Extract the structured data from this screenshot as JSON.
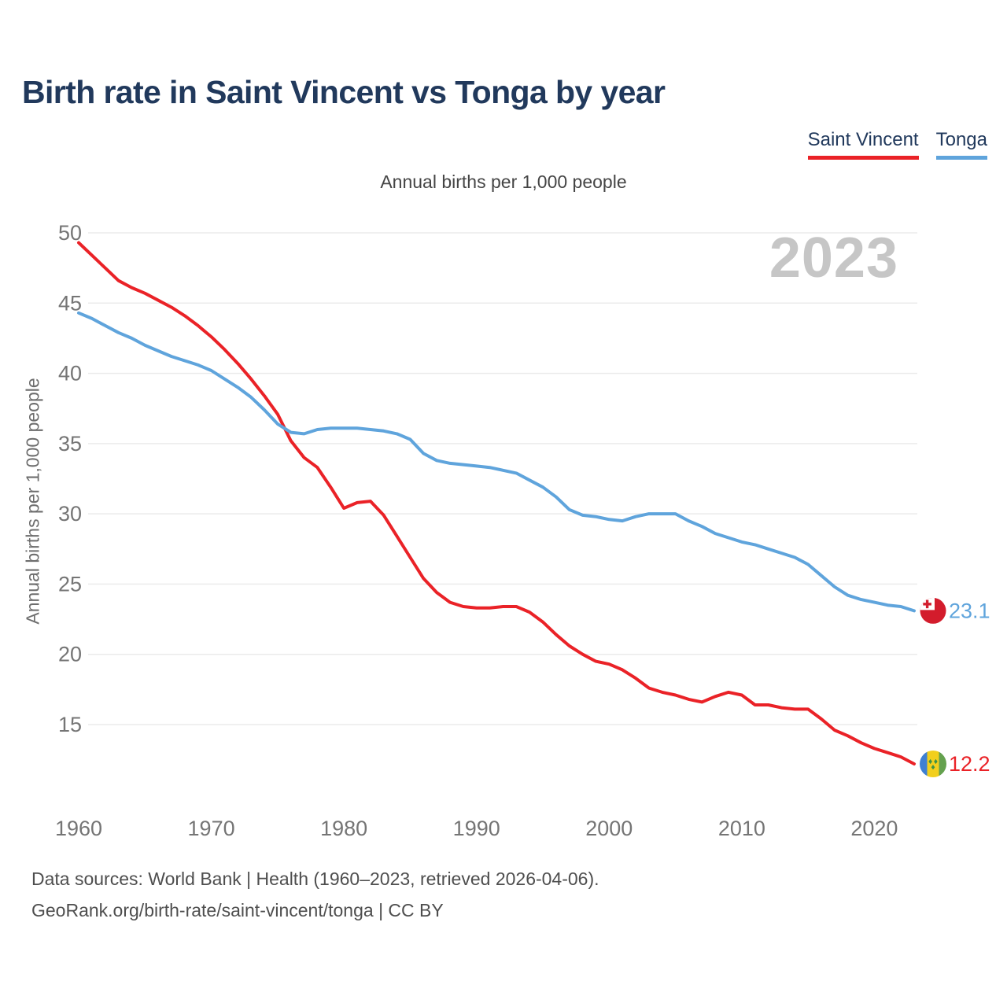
{
  "header": {
    "title": "Birth rate in Saint Vincent vs Tonga by year"
  },
  "subtitle": "Annual births per 1,000 people",
  "watermark": "2023",
  "y_axis_title": "Annual births per 1,000 people",
  "footer": {
    "line1": "Data sources: World Bank | Health (1960–2023, retrieved 2026-04-06).",
    "line2": "GeoRank.org/birth-rate/saint-vincent/tonga | CC BY"
  },
  "colors": {
    "saint_vincent_red": "#ea2227",
    "tonga_blue": "#5fa4dc",
    "title_navy": "#21395c",
    "gridline": "#ebebeb",
    "tick_label": "#757575",
    "watermark_gray": "#c6c6c6"
  },
  "chart_data": {
    "type": "line",
    "title": "Annual births per 1,000 people",
    "xlabel": "",
    "ylabel": "Annual births per 1,000 people",
    "xlim": [
      1960,
      2023
    ],
    "ylim": [
      12,
      51
    ],
    "grid": true,
    "legend_position": "top-right",
    "xticks": [
      1960,
      1970,
      1980,
      1990,
      2000,
      2010,
      2020
    ],
    "yticks": [
      15,
      20,
      25,
      30,
      35,
      40,
      45,
      50
    ],
    "x": [
      1960,
      1961,
      1962,
      1963,
      1964,
      1965,
      1966,
      1967,
      1968,
      1969,
      1970,
      1971,
      1972,
      1973,
      1974,
      1975,
      1976,
      1977,
      1978,
      1979,
      1980,
      1981,
      1982,
      1983,
      1984,
      1985,
      1986,
      1987,
      1988,
      1989,
      1990,
      1991,
      1992,
      1993,
      1994,
      1995,
      1996,
      1997,
      1998,
      1999,
      2000,
      2001,
      2002,
      2003,
      2004,
      2005,
      2006,
      2007,
      2008,
      2009,
      2010,
      2011,
      2012,
      2013,
      2014,
      2015,
      2016,
      2017,
      2018,
      2019,
      2020,
      2021,
      2022,
      2023
    ],
    "series": [
      {
        "name": "Saint Vincent",
        "color": "#ea2227",
        "end_label": "12.2",
        "flag": "saint-vincent",
        "values": [
          49.3,
          48.4,
          47.5,
          46.6,
          46.1,
          45.7,
          45.2,
          44.7,
          44.1,
          43.4,
          42.6,
          41.7,
          40.7,
          39.6,
          38.4,
          37.1,
          35.2,
          34.0,
          33.3,
          31.9,
          30.4,
          30.8,
          30.9,
          29.9,
          28.4,
          26.9,
          25.4,
          24.4,
          23.7,
          23.4,
          23.3,
          23.3,
          23.4,
          23.4,
          23.0,
          22.3,
          21.4,
          20.6,
          20.0,
          19.5,
          19.3,
          18.9,
          18.3,
          17.6,
          17.3,
          17.1,
          16.8,
          16.6,
          17.0,
          17.3,
          17.1,
          16.4,
          16.4,
          16.2,
          16.1,
          16.1,
          15.4,
          14.6,
          14.2,
          13.7,
          13.3,
          13.0,
          12.7,
          12.2
        ]
      },
      {
        "name": "Tonga",
        "color": "#5fa4dc",
        "end_label": "23.1",
        "flag": "tonga",
        "values": [
          44.3,
          43.9,
          43.4,
          42.9,
          42.5,
          42.0,
          41.6,
          41.2,
          40.9,
          40.6,
          40.2,
          39.6,
          39.0,
          38.3,
          37.4,
          36.4,
          35.8,
          35.7,
          36.0,
          36.1,
          36.1,
          36.1,
          36.0,
          35.9,
          35.7,
          35.3,
          34.3,
          33.8,
          33.6,
          33.5,
          33.4,
          33.3,
          33.1,
          32.9,
          32.4,
          31.9,
          31.2,
          30.3,
          29.9,
          29.8,
          29.6,
          29.5,
          29.8,
          30.0,
          30.0,
          30.0,
          29.5,
          29.1,
          28.6,
          28.3,
          28.0,
          27.8,
          27.5,
          27.2,
          26.9,
          26.4,
          25.6,
          24.8,
          24.2,
          23.9,
          23.7,
          23.5,
          23.4,
          23.1
        ]
      }
    ],
    "flag_colors": {
      "tonga_red": "#d31c2c",
      "svg_blue": "#3f80d2",
      "svg_yellow": "#f2cf1d",
      "svg_green": "#64a14e",
      "svg_diamond_green": "#3c9147"
    }
  }
}
